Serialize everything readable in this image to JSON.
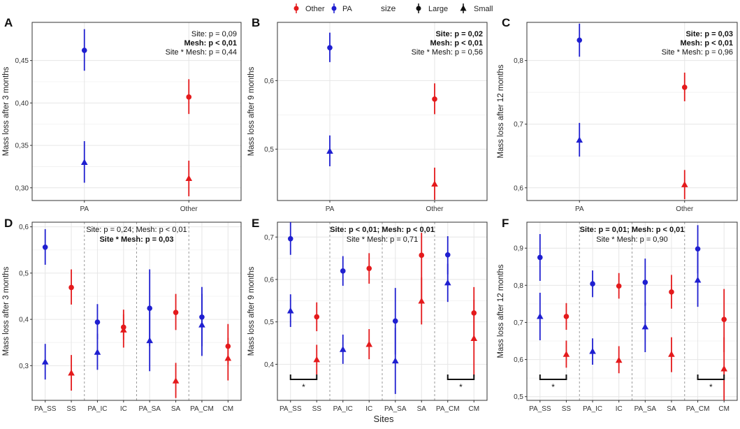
{
  "legend": {
    "color_items": [
      {
        "label": "Other",
        "color": "#e41a1c"
      },
      {
        "label": "PA",
        "color": "#1f1fd0"
      }
    ],
    "size_title": "size",
    "size_items": [
      {
        "label": "Large",
        "shape": "circle"
      },
      {
        "label": "Small",
        "shape": "triangle"
      }
    ]
  },
  "colors": {
    "Other": "#e41a1c",
    "PA": "#1f1fd0",
    "grid": "#e6e6e6",
    "frame": "#333333"
  },
  "shared_x_label": "Sites",
  "chart_data": [
    {
      "panel": "A",
      "type": "scatter",
      "ylabel": "Mass loss after 3 months",
      "categories": [
        "PA",
        "Other"
      ],
      "ylim": [
        0.285,
        0.495
      ],
      "yticks": [
        0.3,
        0.35,
        0.4,
        0.45
      ],
      "ytick_labels": [
        "0,30",
        "0,35",
        "0,40",
        "0,45"
      ],
      "annotations": [
        {
          "text": "Site: p = 0,09",
          "bold": false
        },
        {
          "text": "Mesh: p < 0,01",
          "bold": true
        },
        {
          "text": "Site * Mesh: p = 0,44",
          "bold": false
        }
      ],
      "series": [
        {
          "name": "PA",
          "size": "Large",
          "points": [
            {
              "x": "PA",
              "y": 0.462,
              "lo": 0.438,
              "hi": 0.487
            }
          ]
        },
        {
          "name": "PA",
          "size": "Small",
          "points": [
            {
              "x": "PA",
              "y": 0.33,
              "lo": 0.306,
              "hi": 0.355
            }
          ]
        },
        {
          "name": "Other",
          "size": "Large",
          "points": [
            {
              "x": "Other",
              "y": 0.407,
              "lo": 0.387,
              "hi": 0.428
            }
          ]
        },
        {
          "name": "Other",
          "size": "Small",
          "points": [
            {
              "x": "Other",
              "y": 0.311,
              "lo": 0.29,
              "hi": 0.332
            }
          ]
        }
      ]
    },
    {
      "panel": "B",
      "type": "scatter",
      "ylabel": "Mass loss after 9 months",
      "categories": [
        "PA",
        "Other"
      ],
      "ylim": [
        0.425,
        0.685
      ],
      "yticks": [
        0.5,
        0.6
      ],
      "ytick_labels": [
        "0,5",
        "0,6"
      ],
      "annotations": [
        {
          "text": "Site: p = 0,02",
          "bold": true
        },
        {
          "text": "Mesh: p < 0,01",
          "bold": true
        },
        {
          "text": "Site * Mesh: p = 0,56",
          "bold": false
        }
      ],
      "series": [
        {
          "name": "PA",
          "size": "Large",
          "points": [
            {
              "x": "PA",
              "y": 0.648,
              "lo": 0.627,
              "hi": 0.67
            }
          ]
        },
        {
          "name": "PA",
          "size": "Small",
          "points": [
            {
              "x": "PA",
              "y": 0.497,
              "lo": 0.475,
              "hi": 0.52
            }
          ]
        },
        {
          "name": "Other",
          "size": "Large",
          "points": [
            {
              "x": "Other",
              "y": 0.573,
              "lo": 0.551,
              "hi": 0.596
            }
          ]
        },
        {
          "name": "Other",
          "size": "Small",
          "points": [
            {
              "x": "Other",
              "y": 0.449,
              "lo": 0.426,
              "hi": 0.473
            }
          ]
        }
      ]
    },
    {
      "panel": "C",
      "type": "scatter",
      "ylabel": "Mass loss after 12 months",
      "categories": [
        "PA",
        "Other"
      ],
      "ylim": [
        0.58,
        0.86
      ],
      "yticks": [
        0.6,
        0.7,
        0.8
      ],
      "ytick_labels": [
        "0,6",
        "0,7",
        "0,8"
      ],
      "annotations": [
        {
          "text": "Site: p = 0,03",
          "bold": true
        },
        {
          "text": "Mesh: p < 0,01",
          "bold": true
        },
        {
          "text": "Site * Mesh: p = 0,96",
          "bold": false
        }
      ],
      "series": [
        {
          "name": "PA",
          "size": "Large",
          "points": [
            {
              "x": "PA",
              "y": 0.832,
              "lo": 0.806,
              "hi": 0.858
            }
          ]
        },
        {
          "name": "PA",
          "size": "Small",
          "points": [
            {
              "x": "PA",
              "y": 0.675,
              "lo": 0.649,
              "hi": 0.702
            }
          ]
        },
        {
          "name": "Other",
          "size": "Large",
          "points": [
            {
              "x": "Other",
              "y": 0.758,
              "lo": 0.736,
              "hi": 0.781
            }
          ]
        },
        {
          "name": "Other",
          "size": "Small",
          "points": [
            {
              "x": "Other",
              "y": 0.605,
              "lo": 0.582,
              "hi": 0.628
            }
          ]
        }
      ]
    },
    {
      "panel": "D",
      "type": "scatter",
      "ylabel": "Mass loss after 3 months",
      "categories": [
        "PA_SS",
        "SS",
        "PA_IC",
        "IC",
        "PA_SA",
        "SA",
        "PA_CM",
        "CM"
      ],
      "ylim": [
        0.225,
        0.61
      ],
      "yticks": [
        0.3,
        0.4,
        0.5,
        0.6
      ],
      "ytick_labels": [
        "0,3",
        "0,4",
        "0,5",
        "0,6"
      ],
      "annotations": [
        {
          "text": "Site: p = 0,24; Mesh: p < 0,01",
          "bold": false
        },
        {
          "text": "Site * Mesh: p = 0,03",
          "bold": true
        }
      ],
      "group_separators_after": [
        2,
        4,
        6
      ],
      "significance_brackets": [],
      "series": [
        {
          "name": "PA",
          "size": "Large",
          "points": [
            {
              "x": "PA_SS",
              "y": 0.556,
              "lo": 0.518,
              "hi": 0.595
            },
            {
              "x": "PA_IC",
              "y": 0.394,
              "lo": 0.357,
              "hi": 0.433
            },
            {
              "x": "PA_SA",
              "y": 0.424,
              "lo": 0.342,
              "hi": 0.508
            },
            {
              "x": "PA_CM",
              "y": 0.405,
              "lo": 0.342,
              "hi": 0.47
            }
          ]
        },
        {
          "name": "PA",
          "size": "Small",
          "points": [
            {
              "x": "PA_SS",
              "y": 0.308,
              "lo": 0.27,
              "hi": 0.347
            },
            {
              "x": "PA_IC",
              "y": 0.329,
              "lo": 0.291,
              "hi": 0.369
            },
            {
              "x": "PA_SA",
              "y": 0.354,
              "lo": 0.288,
              "hi": 0.42
            },
            {
              "x": "PA_CM",
              "y": 0.388,
              "lo": 0.321,
              "hi": 0.455
            }
          ]
        },
        {
          "name": "Other",
          "size": "Large",
          "points": [
            {
              "x": "SS",
              "y": 0.469,
              "lo": 0.432,
              "hi": 0.508
            },
            {
              "x": "IC",
              "y": 0.383,
              "lo": 0.356,
              "hi": 0.411
            },
            {
              "x": "SA",
              "y": 0.415,
              "lo": 0.377,
              "hi": 0.455
            },
            {
              "x": "CM",
              "y": 0.342,
              "lo": 0.302,
              "hi": 0.39
            }
          ]
        },
        {
          "name": "Other",
          "size": "Small",
          "points": [
            {
              "x": "SS",
              "y": 0.284,
              "lo": 0.246,
              "hi": 0.323
            },
            {
              "x": "IC",
              "y": 0.377,
              "lo": 0.339,
              "hi": 0.421
            },
            {
              "x": "SA",
              "y": 0.267,
              "lo": 0.23,
              "hi": 0.306
            },
            {
              "x": "CM",
              "y": 0.316,
              "lo": 0.268,
              "hi": 0.36
            }
          ]
        }
      ]
    },
    {
      "panel": "E",
      "type": "scatter",
      "ylabel": "Mass loss after 9 months",
      "categories": [
        "PA_SS",
        "SS",
        "PA_IC",
        "IC",
        "PA_SA",
        "SA",
        "PA_CM",
        "CM"
      ],
      "ylim": [
        0.315,
        0.735
      ],
      "yticks": [
        0.4,
        0.5,
        0.6,
        0.7
      ],
      "ytick_labels": [
        "0,4",
        "0,5",
        "0,6",
        "0,7"
      ],
      "annotations": [
        {
          "text": "Site: p < 0,01; Mesh: p < 0,01",
          "bold": true
        },
        {
          "text": "Site * Mesh: p = 0,71",
          "bold": false
        }
      ],
      "group_separators_after": [
        2,
        4,
        6
      ],
      "significance_brackets": [
        {
          "from": "PA_SS",
          "to": "SS",
          "label": "*"
        },
        {
          "from": "PA_CM",
          "to": "CM",
          "label": "*"
        }
      ],
      "series": [
        {
          "name": "PA",
          "size": "Large",
          "points": [
            {
              "x": "PA_SS",
              "y": 0.696,
              "lo": 0.658,
              "hi": 0.735
            },
            {
              "x": "PA_IC",
              "y": 0.62,
              "lo": 0.585,
              "hi": 0.655
            },
            {
              "x": "PA_SA",
              "y": 0.502,
              "lo": 0.423,
              "hi": 0.58
            },
            {
              "x": "PA_CM",
              "y": 0.658,
              "lo": 0.612,
              "hi": 0.702
            }
          ]
        },
        {
          "name": "PA",
          "size": "Small",
          "points": [
            {
              "x": "PA_SS",
              "y": 0.526,
              "lo": 0.488,
              "hi": 0.565
            },
            {
              "x": "PA_IC",
              "y": 0.435,
              "lo": 0.401,
              "hi": 0.47
            },
            {
              "x": "PA_SA",
              "y": 0.408,
              "lo": 0.33,
              "hi": 0.486
            },
            {
              "x": "PA_CM",
              "y": 0.592,
              "lo": 0.547,
              "hi": 0.637
            }
          ]
        },
        {
          "name": "Other",
          "size": "Large",
          "points": [
            {
              "x": "SS",
              "y": 0.512,
              "lo": 0.478,
              "hi": 0.546
            },
            {
              "x": "IC",
              "y": 0.626,
              "lo": 0.59,
              "hi": 0.662
            },
            {
              "x": "SA",
              "y": 0.657,
              "lo": 0.545,
              "hi": 0.71
            },
            {
              "x": "CM",
              "y": 0.521,
              "lo": 0.46,
              "hi": 0.582
            }
          ]
        },
        {
          "name": "Other",
          "size": "Small",
          "points": [
            {
              "x": "SS",
              "y": 0.411,
              "lo": 0.375,
              "hi": 0.446
            },
            {
              "x": "IC",
              "y": 0.447,
              "lo": 0.412,
              "hi": 0.483
            },
            {
              "x": "SA",
              "y": 0.549,
              "lo": 0.494,
              "hi": 0.605
            },
            {
              "x": "CM",
              "y": 0.461,
              "lo": 0.37,
              "hi": 0.552
            }
          ]
        }
      ]
    },
    {
      "panel": "F",
      "type": "scatter",
      "ylabel": "Mass loss after 12 months",
      "categories": [
        "PA_SS",
        "SS",
        "PA_IC",
        "IC",
        "PA_SA",
        "SA",
        "PA_CM",
        "CM"
      ],
      "ylim": [
        0.49,
        0.97
      ],
      "yticks": [
        0.5,
        0.6,
        0.7,
        0.8,
        0.9
      ],
      "ytick_labels": [
        "0,5",
        "0,6",
        "0,7",
        "0,8",
        "0,9"
      ],
      "annotations": [
        {
          "text": "Site: p = 0,01; Mesh: p < 0,01",
          "bold": true
        },
        {
          "text": "Site * Mesh: p = 0,90",
          "bold": false
        }
      ],
      "group_separators_after": [
        2,
        4,
        6
      ],
      "significance_brackets": [
        {
          "from": "PA_SS",
          "to": "SS",
          "label": "*"
        },
        {
          "from": "PA_CM",
          "to": "CM",
          "label": "*"
        }
      ],
      "series": [
        {
          "name": "PA",
          "size": "Large",
          "points": [
            {
              "x": "PA_SS",
              "y": 0.875,
              "lo": 0.812,
              "hi": 0.938
            },
            {
              "x": "PA_IC",
              "y": 0.804,
              "lo": 0.768,
              "hi": 0.84
            },
            {
              "x": "PA_SA",
              "y": 0.808,
              "lo": 0.745,
              "hi": 0.872
            },
            {
              "x": "PA_CM",
              "y": 0.898,
              "lo": 0.832,
              "hi": 0.962
            }
          ]
        },
        {
          "name": "PA",
          "size": "Small",
          "points": [
            {
              "x": "PA_SS",
              "y": 0.716,
              "lo": 0.652,
              "hi": 0.78
            },
            {
              "x": "PA_IC",
              "y": 0.622,
              "lo": 0.586,
              "hi": 0.657
            },
            {
              "x": "PA_SA",
              "y": 0.688,
              "lo": 0.62,
              "hi": 0.753
            },
            {
              "x": "PA_CM",
              "y": 0.814,
              "lo": 0.742,
              "hi": 0.888
            }
          ]
        },
        {
          "name": "Other",
          "size": "Large",
          "points": [
            {
              "x": "SS",
              "y": 0.716,
              "lo": 0.68,
              "hi": 0.752
            },
            {
              "x": "IC",
              "y": 0.798,
              "lo": 0.764,
              "hi": 0.833
            },
            {
              "x": "SA",
              "y": 0.782,
              "lo": 0.737,
              "hi": 0.828
            },
            {
              "x": "CM",
              "y": 0.708,
              "lo": 0.62,
              "hi": 0.79
            }
          ]
        },
        {
          "name": "Other",
          "size": "Small",
          "points": [
            {
              "x": "SS",
              "y": 0.614,
              "lo": 0.578,
              "hi": 0.651
            },
            {
              "x": "IC",
              "y": 0.598,
              "lo": 0.563,
              "hi": 0.636
            },
            {
              "x": "SA",
              "y": 0.614,
              "lo": 0.566,
              "hi": 0.66
            },
            {
              "x": "CM",
              "y": 0.575,
              "lo": 0.49,
              "hi": 0.66
            }
          ]
        }
      ]
    }
  ]
}
